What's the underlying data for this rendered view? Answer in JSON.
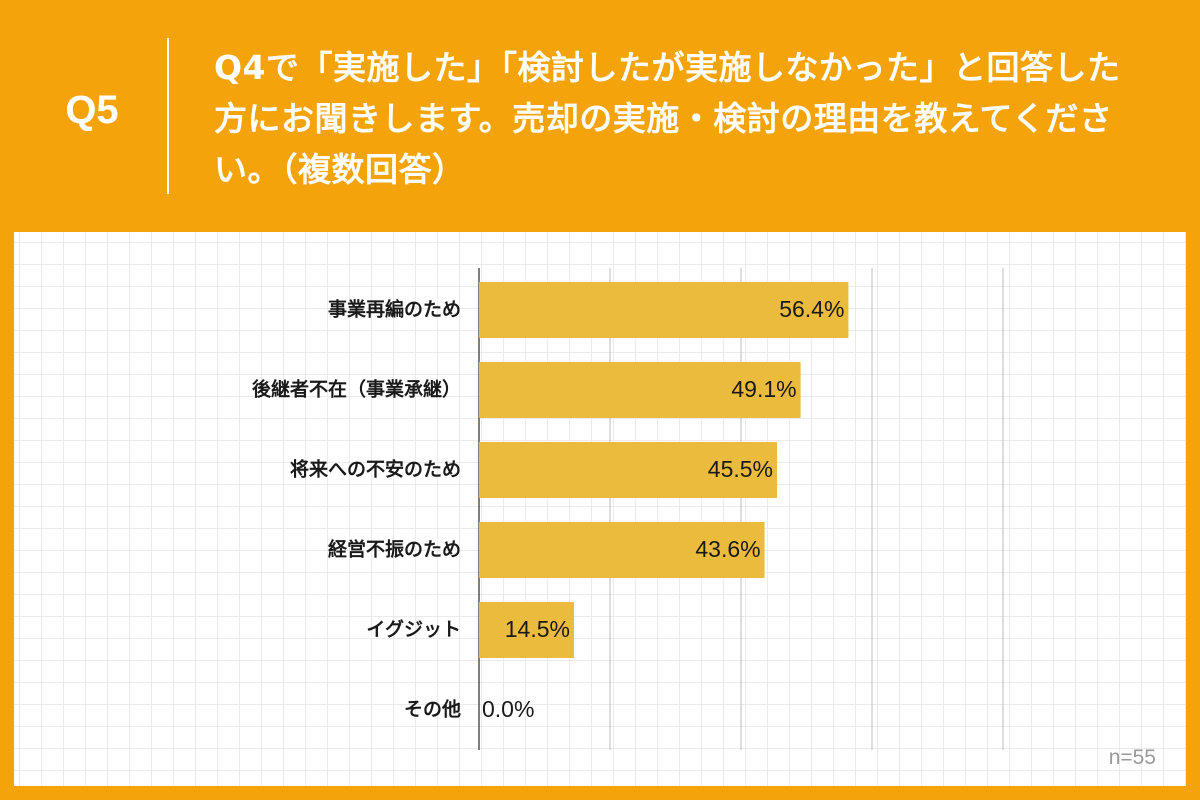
{
  "header": {
    "q_label": "Q5",
    "question": "Q4で「実施した」「検討したが実施しなかった」と回答した方にお聞きします。売却の実施・検討の理由を教えてください。（複数回答）"
  },
  "colors": {
    "background": "#F4A30A",
    "bar": "#EBBB3E",
    "gridline": "#bdbdbd",
    "text": "#1a1a1a"
  },
  "chart_data": {
    "type": "bar",
    "orientation": "horizontal",
    "categories": [
      "事業再編のため",
      "後継者不在（事業承継）",
      "将来への不安のため",
      "経営不振のため",
      "イグジット",
      "その他"
    ],
    "values": [
      56.4,
      49.1,
      45.5,
      43.6,
      14.5,
      0.0
    ],
    "data_labels": [
      "56.4%",
      "49.1%",
      "45.5%",
      "43.6%",
      "14.5%",
      "0.0%"
    ],
    "xlim": [
      0,
      80
    ],
    "grid": true,
    "note": "n=55"
  }
}
